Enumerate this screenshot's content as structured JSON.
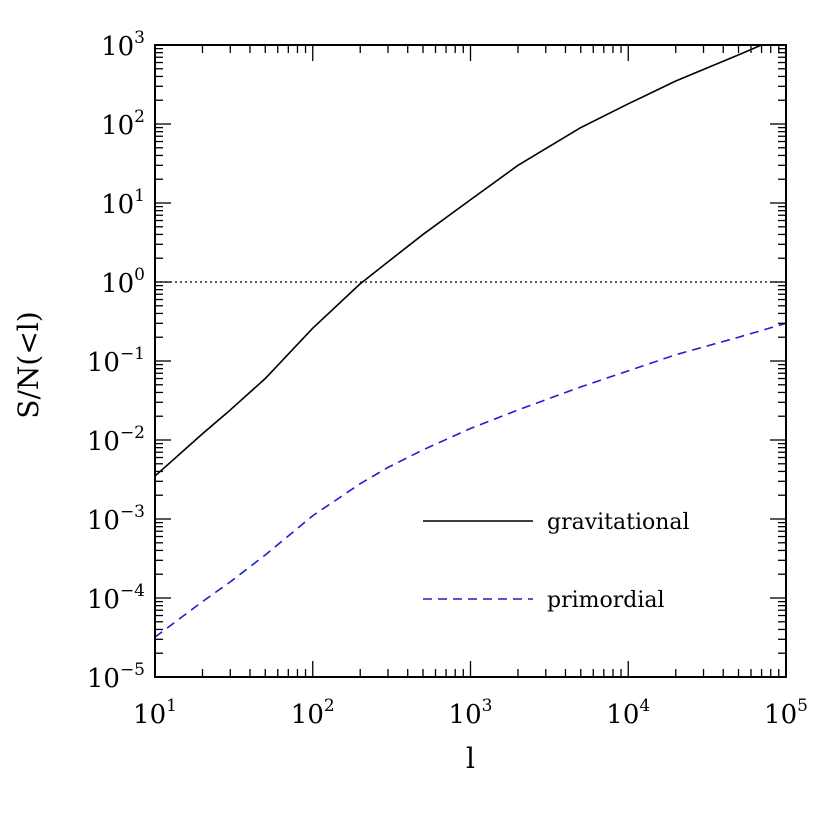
{
  "chart_data": {
    "type": "line",
    "xlabel": "l",
    "ylabel": "S/N(<l)",
    "xscale": "log",
    "yscale": "log",
    "xlim": [
      10,
      100000
    ],
    "ylim": [
      1e-05,
      1000
    ],
    "grid": false,
    "legend_position": "bottom-right",
    "x_ticks": [
      {
        "base": "10",
        "exp": "1",
        "value": 10
      },
      {
        "base": "10",
        "exp": "2",
        "value": 100
      },
      {
        "base": "10",
        "exp": "3",
        "value": 1000
      },
      {
        "base": "10",
        "exp": "4",
        "value": 10000
      },
      {
        "base": "10",
        "exp": "5",
        "value": 100000
      }
    ],
    "y_ticks": [
      {
        "base": "10",
        "exp": "−5",
        "value": 1e-05
      },
      {
        "base": "10",
        "exp": "−4",
        "value": 0.0001
      },
      {
        "base": "10",
        "exp": "−3",
        "value": 0.001
      },
      {
        "base": "10",
        "exp": "−2",
        "value": 0.01
      },
      {
        "base": "10",
        "exp": "−1",
        "value": 0.1
      },
      {
        "base": "10",
        "exp": "0",
        "value": 1
      },
      {
        "base": "10",
        "exp": "1",
        "value": 10
      },
      {
        "base": "10",
        "exp": "2",
        "value": 100
      },
      {
        "base": "10",
        "exp": "3",
        "value": 1000
      }
    ],
    "reference_lines": [
      {
        "y": 1,
        "style": "dotted",
        "color": "#000000"
      }
    ],
    "series": [
      {
        "name": "gravitational",
        "style": "solid",
        "color": "#000000",
        "x": [
          10,
          20,
          30,
          50,
          100,
          200,
          300,
          500,
          1000,
          2000,
          5000,
          10000,
          20000,
          50000,
          70000
        ],
        "y": [
          0.0035,
          0.012,
          0.024,
          0.06,
          0.26,
          0.95,
          1.8,
          4.0,
          11,
          30,
          90,
          180,
          350,
          750,
          1000
        ]
      },
      {
        "name": "primordial",
        "style": "dashed",
        "color": "#1f1fd0",
        "x": [
          10,
          20,
          30,
          50,
          100,
          200,
          300,
          500,
          1000,
          2000,
          5000,
          10000,
          20000,
          50000,
          100000
        ],
        "y": [
          3.2e-05,
          9e-05,
          0.00016,
          0.00035,
          0.0011,
          0.0028,
          0.0045,
          0.0075,
          0.014,
          0.024,
          0.047,
          0.075,
          0.12,
          0.2,
          0.3
        ]
      }
    ]
  }
}
